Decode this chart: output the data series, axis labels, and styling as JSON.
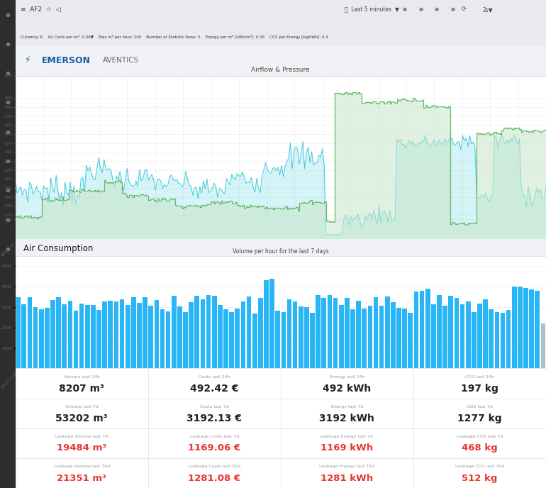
{
  "bg_color": "#f0f2f5",
  "panel_bg": "#ffffff",
  "sidebar_color": "#2d2d2d",
  "top_bar_color": "#e8eaed",
  "title_airflow": "Airflow & Pressure",
  "title_consumption": "Air Consumption",
  "bar_chart_title": "Volume per hour for the last 7 days",
  "airflow_color": "#26c6da",
  "airflow_fill": "#b2ebf2",
  "pressure_color": "#66bb6a",
  "pressure_fill": "#c8e6c9",
  "bar_color": "#29b6f6",
  "emerson_blue": "#1a5fa8",
  "stats": [
    {
      "label": "Volume last 24h",
      "value": "8207 m³",
      "color": "#212121"
    },
    {
      "label": "Costs last 24h",
      "value": "492.42 €",
      "color": "#212121"
    },
    {
      "label": "Energy last 24h",
      "value": "492 kWh",
      "color": "#212121"
    },
    {
      "label": "CO2 last 24h",
      "value": "197 kg",
      "color": "#212121"
    },
    {
      "label": "Volume last 7d",
      "value": "53202 m³",
      "color": "#212121"
    },
    {
      "label": "Costs last 7d",
      "value": "3192.13 €",
      "color": "#212121"
    },
    {
      "label": "Energy last 7d",
      "value": "3192 kWh",
      "color": "#212121"
    },
    {
      "label": "CO2 last 7d",
      "value": "1277 kg",
      "color": "#212121"
    },
    {
      "label": "Leakage Volume last 7d",
      "value": "19484 m³",
      "color": "#e53935"
    },
    {
      "label": "Leakage Costs last 7d",
      "value": "1169.06 €",
      "color": "#e53935"
    },
    {
      "label": "Leakage Energy last 7d",
      "value": "1169 kWh",
      "color": "#e53935"
    },
    {
      "label": "Leakage CO2 last 7d",
      "value": "468 kg",
      "color": "#e53935"
    },
    {
      "label": "Leakage Volume last 30d",
      "value": "21351 m³",
      "color": "#e53935"
    },
    {
      "label": "Leakage Costs last 30d",
      "value": "1281.08 €",
      "color": "#e53935"
    },
    {
      "label": "Leakage Energy last 30d",
      "value": "1281 kWh",
      "color": "#e53935"
    },
    {
      "label": "Leakage CO2 last 30d",
      "value": "512 kg",
      "color": "#e53935"
    }
  ]
}
